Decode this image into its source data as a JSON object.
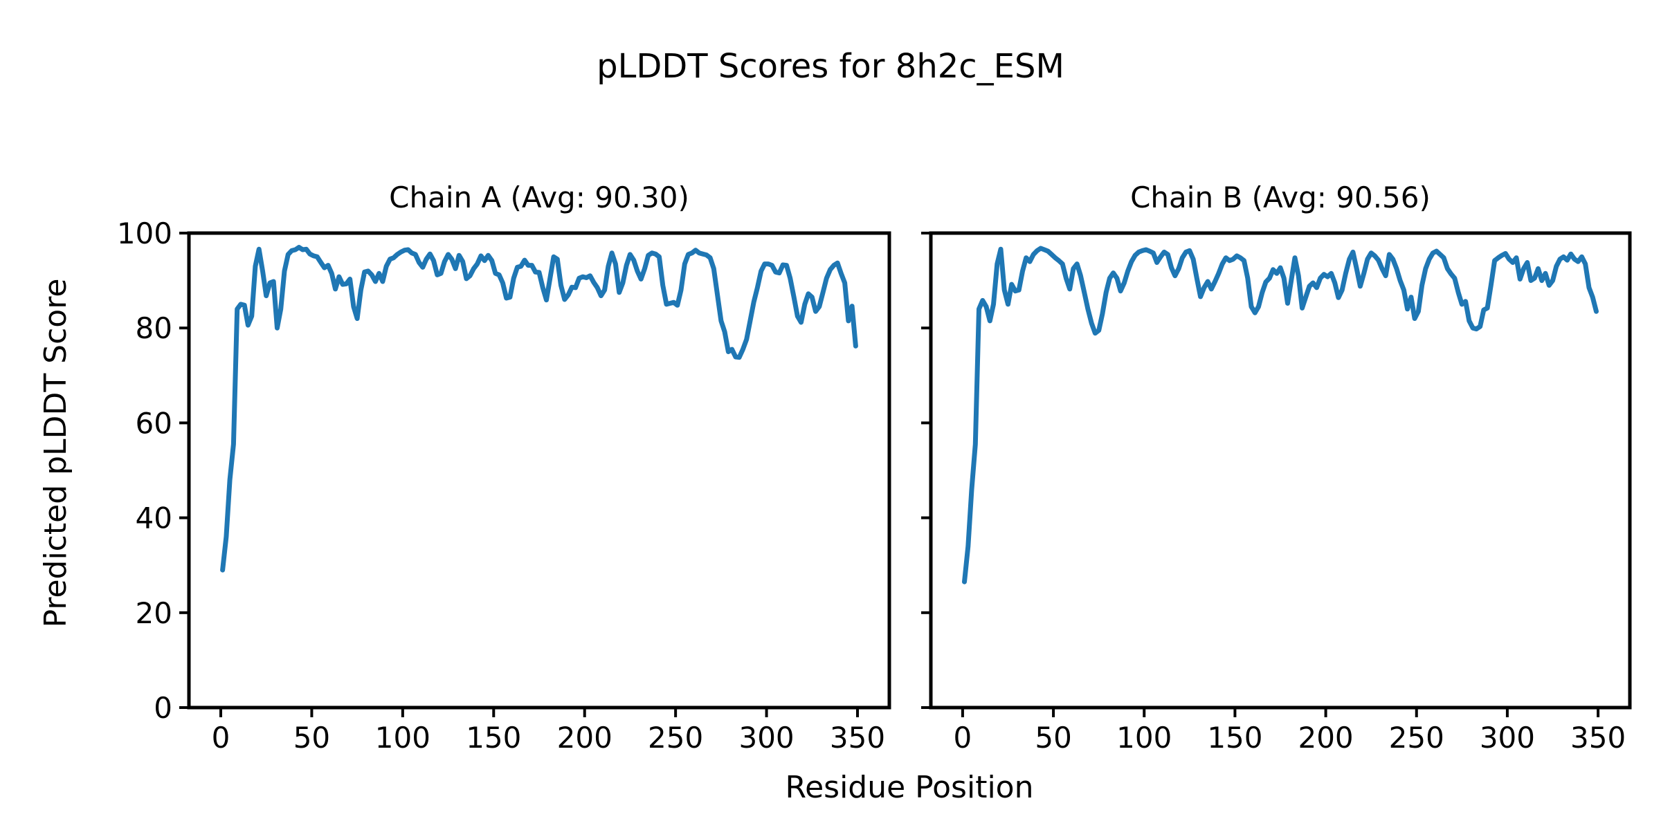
{
  "figure": {
    "title": "pLDDT Scores for 8h2c_ESM",
    "background_color": "#ffffff",
    "text_color": "#000000"
  },
  "axis": {
    "xlabel": "Residue Position",
    "ylabel": "Predicted pLDDT Score"
  },
  "chart_data": [
    {
      "type": "line",
      "title": "Chain A (Avg: 90.30)",
      "chain": "A",
      "avg": 90.3,
      "xlabel": "Residue Position",
      "ylabel": "Predicted pLDDT Score",
      "xlim": [
        -17.5,
        367.5
      ],
      "ylim": [
        0,
        100
      ],
      "x_ticks": [
        0,
        50,
        100,
        150,
        200,
        250,
        300,
        350
      ],
      "y_ticks": [
        0,
        20,
        40,
        60,
        80,
        100
      ],
      "grid": false,
      "legend": false,
      "line_color": "#1f77b4",
      "x_start": 1,
      "x_step": 2,
      "values": [
        29.0,
        36.0,
        48.0,
        55.5,
        84.0,
        85.0,
        84.8,
        80.6,
        82.5,
        93.0,
        96.6,
        92.0,
        86.8,
        89.5,
        89.8,
        80.0,
        84.0,
        92.0,
        95.5,
        96.3,
        96.5,
        97.0,
        96.5,
        96.6,
        95.6,
        95.2,
        95.0,
        93.8,
        92.7,
        93.2,
        91.5,
        88.2,
        90.8,
        89.2,
        89.3,
        90.3,
        84.5,
        82.0,
        88.0,
        91.8,
        92.0,
        91.2,
        89.8,
        91.5,
        89.8,
        93.0,
        94.5,
        94.8,
        95.5,
        96.0,
        96.4,
        96.5,
        95.8,
        95.5,
        93.8,
        92.8,
        94.5,
        95.6,
        94.2,
        91.2,
        91.5,
        94.0,
        95.5,
        94.5,
        92.5,
        95.3,
        94.0,
        90.4,
        91.0,
        92.5,
        93.5,
        95.2,
        94.2,
        95.3,
        94.2,
        91.5,
        91.2,
        89.5,
        86.3,
        86.5,
        90.5,
        92.8,
        93.0,
        94.3,
        93.2,
        93.2,
        91.8,
        91.7,
        88.5,
        85.9,
        90.5,
        95.0,
        94.5,
        89.0,
        86.0,
        87.0,
        88.6,
        88.5,
        90.5,
        90.8,
        90.6,
        91.0,
        89.6,
        88.5,
        86.8,
        88.0,
        93.0,
        95.8,
        93.5,
        87.5,
        89.5,
        93.2,
        95.5,
        94.3,
        92.0,
        90.3,
        92.5,
        95.3,
        95.8,
        95.6,
        95.0,
        89.0,
        85.0,
        85.2,
        85.4,
        84.8,
        88.0,
        93.5,
        95.5,
        95.8,
        96.4,
        95.8,
        95.6,
        95.4,
        94.8,
        92.5,
        87.0,
        81.5,
        79.2,
        75.0,
        75.5,
        73.9,
        73.8,
        75.5,
        77.6,
        81.5,
        85.5,
        88.5,
        92.0,
        93.5,
        93.5,
        93.2,
        91.8,
        91.6,
        93.3,
        93.2,
        90.5,
        86.6,
        82.5,
        81.2,
        85.0,
        87.2,
        86.5,
        83.5,
        84.5,
        87.5,
        90.5,
        92.3,
        93.2,
        93.7,
        91.5,
        89.5,
        81.5,
        84.6,
        76.2
      ]
    },
    {
      "type": "line",
      "title": "Chain B (Avg: 90.56)",
      "chain": "B",
      "avg": 90.56,
      "xlabel": "Residue Position",
      "ylabel": "Predicted pLDDT Score",
      "xlim": [
        -17.5,
        367.5
      ],
      "ylim": [
        0,
        100
      ],
      "x_ticks": [
        0,
        50,
        100,
        150,
        200,
        250,
        300,
        350
      ],
      "y_ticks": [
        0,
        20,
        40,
        60,
        80,
        100
      ],
      "grid": false,
      "legend": false,
      "line_color": "#1f77b4",
      "x_start": 1,
      "x_step": 2,
      "values": [
        26.5,
        34.0,
        46.0,
        55.5,
        84.0,
        85.8,
        84.5,
        81.5,
        85.0,
        93.5,
        96.6,
        88.0,
        85.0,
        89.2,
        87.8,
        88.0,
        92.0,
        94.8,
        94.0,
        95.5,
        96.3,
        96.8,
        96.5,
        96.2,
        95.5,
        94.8,
        94.2,
        93.5,
        90.5,
        88.2,
        92.5,
        93.5,
        91.0,
        87.5,
        84.0,
        81.0,
        78.9,
        79.5,
        83.0,
        87.5,
        90.5,
        91.6,
        90.5,
        87.8,
        89.5,
        92.0,
        94.0,
        95.3,
        96.0,
        96.3,
        96.5,
        96.2,
        95.8,
        93.8,
        95.0,
        96.0,
        95.5,
        92.7,
        91.0,
        92.5,
        94.8,
        96.0,
        96.3,
        94.5,
        90.5,
        86.6,
        88.5,
        89.8,
        88.2,
        89.8,
        91.5,
        93.5,
        94.8,
        94.2,
        94.5,
        95.2,
        94.8,
        94.2,
        90.5,
        84.5,
        83.2,
        84.5,
        87.5,
        89.7,
        90.5,
        92.3,
        91.5,
        92.7,
        90.5,
        85.2,
        90.0,
        94.8,
        91.0,
        84.2,
        86.5,
        88.8,
        89.5,
        88.5,
        90.5,
        91.3,
        90.8,
        91.5,
        89.5,
        86.4,
        88.0,
        91.5,
        94.5,
        96.0,
        92.5,
        88.8,
        91.5,
        94.5,
        95.8,
        95.2,
        94.3,
        92.5,
        91.0,
        95.5,
        94.5,
        92.5,
        90.0,
        88.0,
        84.0,
        86.5,
        82.0,
        83.5,
        89.0,
        92.5,
        94.5,
        95.8,
        96.2,
        95.5,
        94.8,
        92.5,
        91.4,
        90.5,
        87.5,
        85.0,
        85.6,
        81.5,
        80.0,
        79.8,
        80.3,
        83.8,
        84.2,
        89.0,
        94.2,
        94.8,
        95.3,
        95.7,
        94.5,
        93.8,
        94.8,
        90.3,
        92.5,
        93.8,
        90.0,
        90.5,
        92.5,
        90.0,
        91.5,
        89.0,
        90.0,
        93.0,
        94.5,
        95.0,
        94.3,
        95.6,
        94.5,
        94.0,
        95.0,
        93.5,
        88.5,
        86.5,
        83.5
      ]
    }
  ]
}
